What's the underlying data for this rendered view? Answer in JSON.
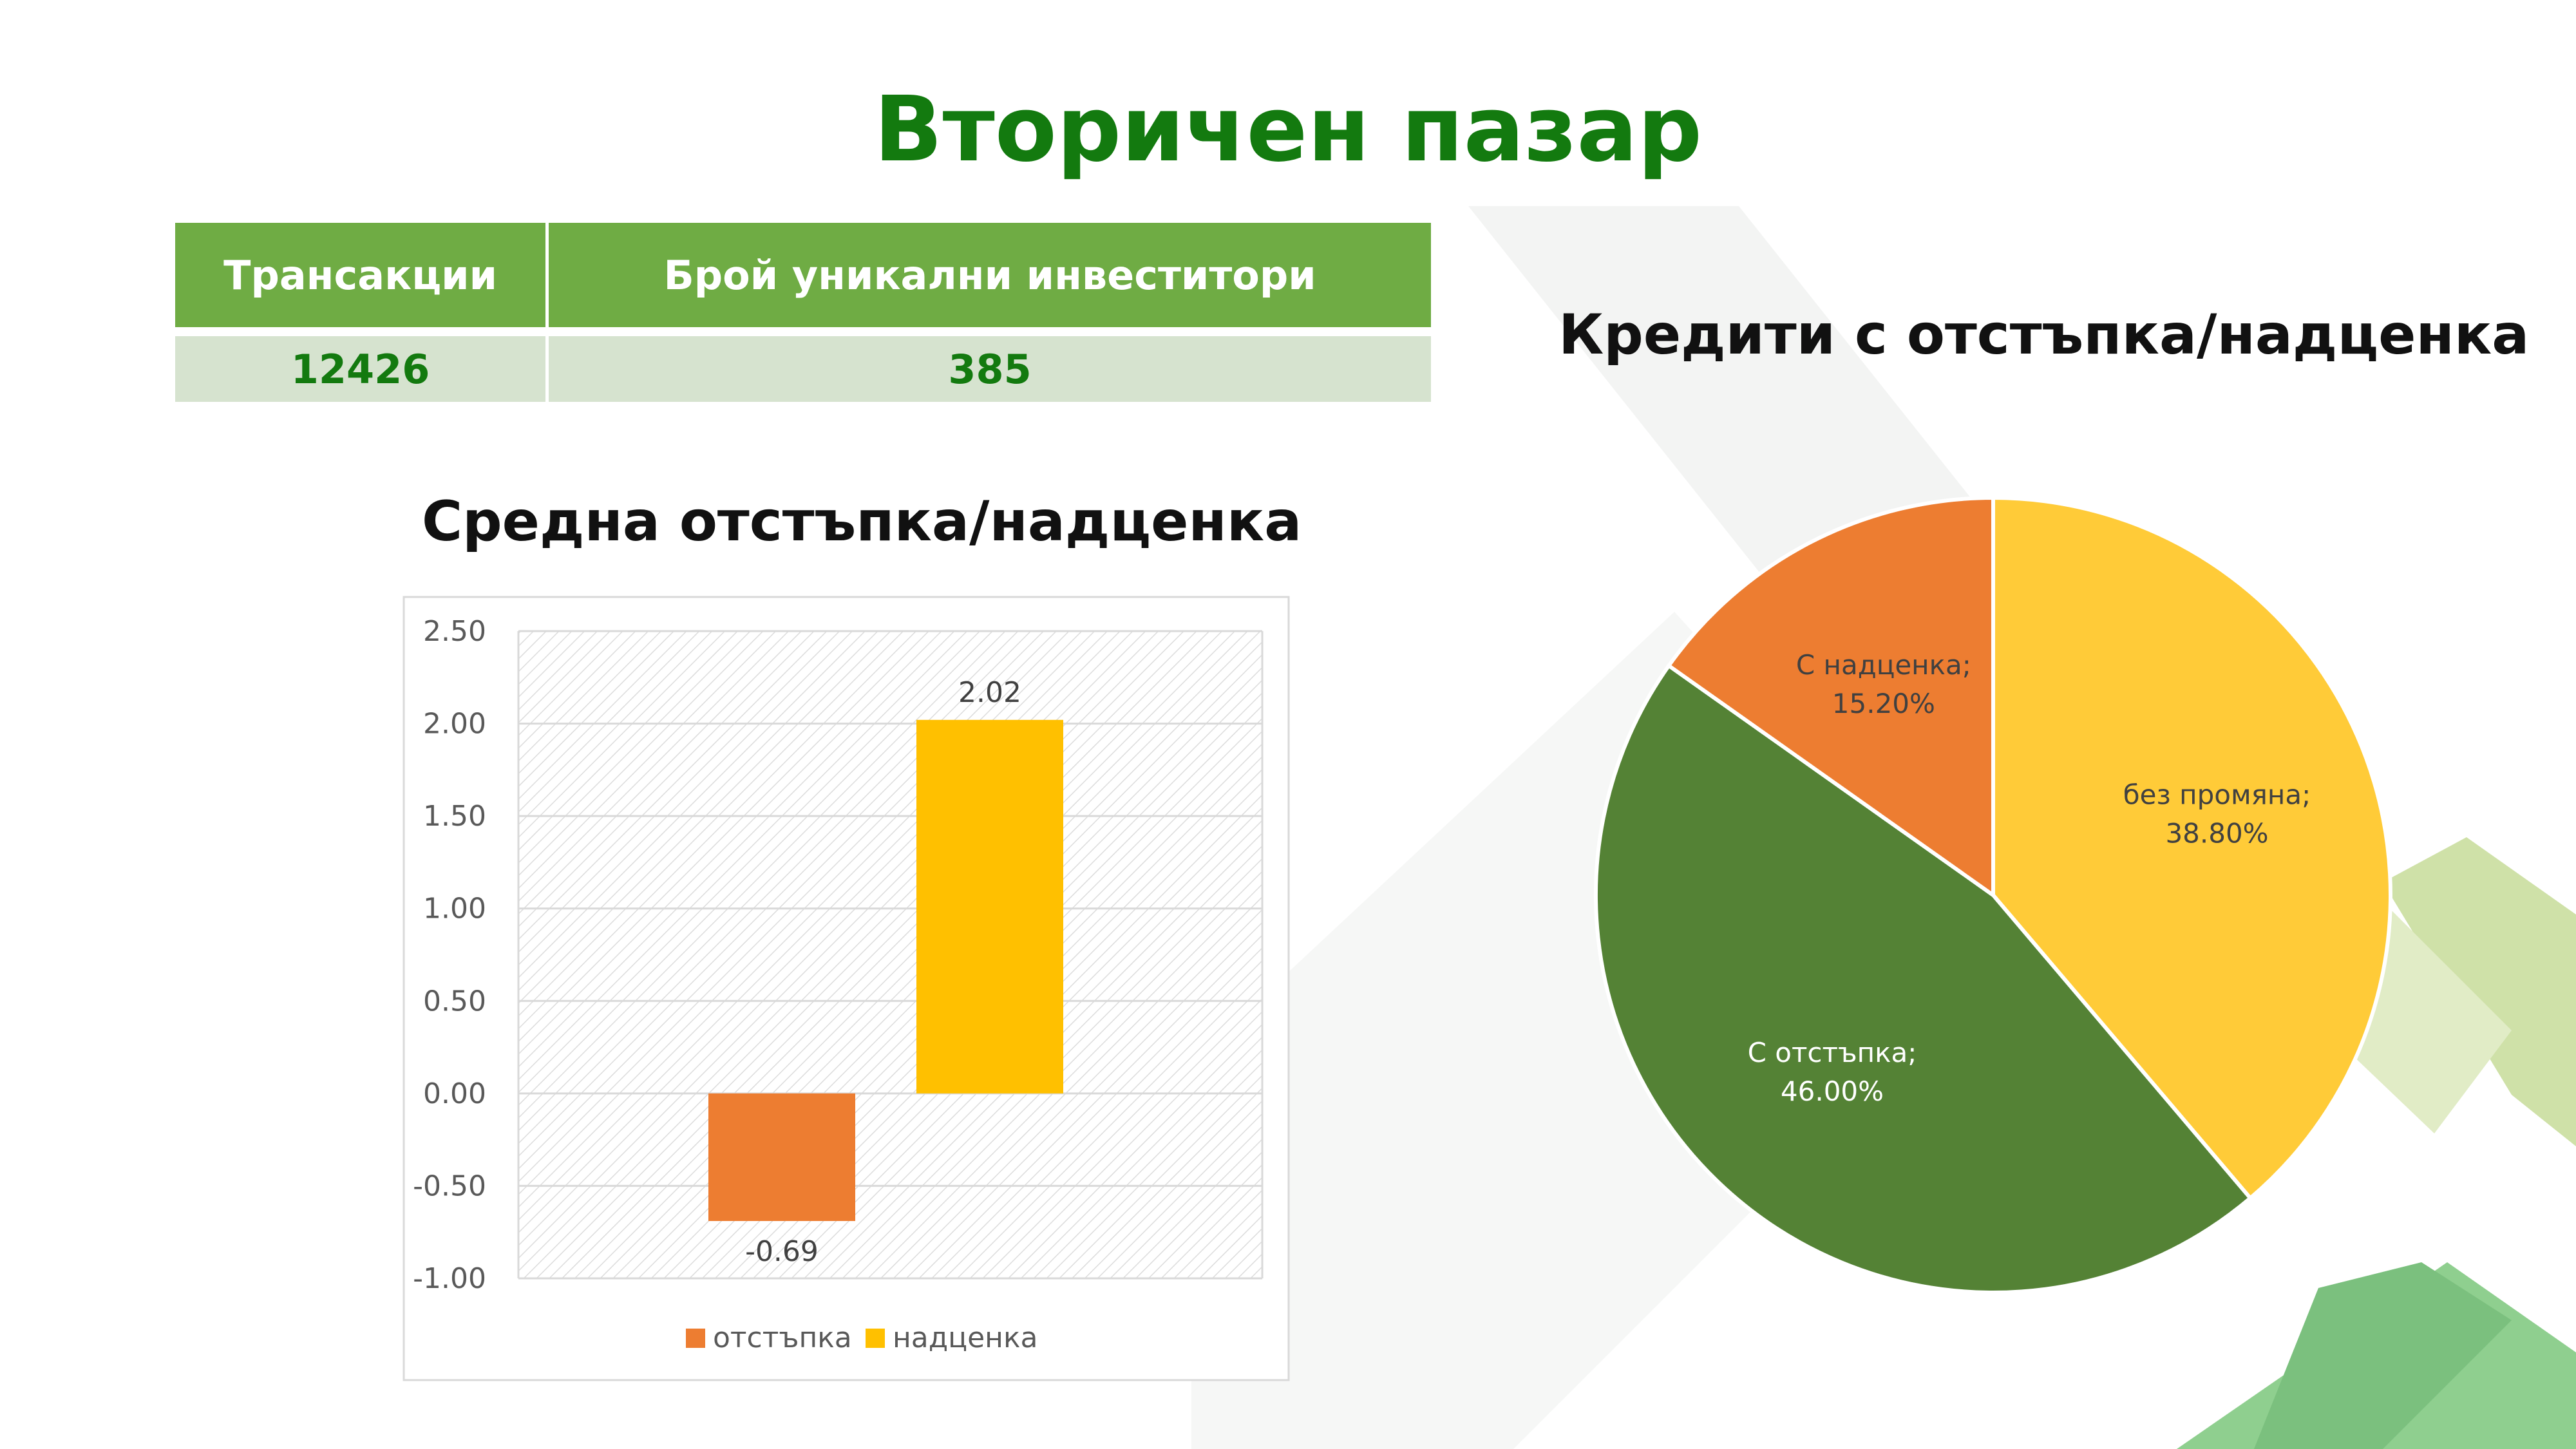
{
  "page_title": "Вторичен пазар",
  "stats_table": {
    "headers": [
      "Трансакции",
      "Брой уникални инвеститори"
    ],
    "values": [
      "12426",
      "385"
    ]
  },
  "colors": {
    "title_green": "#137a0f",
    "table_header": "#6fac44",
    "table_cell": "#d6e3cf",
    "orange": "#ed7d31",
    "yellow": "#ffc000",
    "pie_yellow": "#ffcb38",
    "pie_green": "#548235"
  },
  "chart_data": [
    {
      "type": "bar",
      "title": "Средна отстъпка/надценка",
      "xlabel": "",
      "ylabel": "",
      "ylim": [
        -1.0,
        2.5
      ],
      "yticks": [
        "2.50",
        "2.00",
        "1.50",
        "1.00",
        "0.50",
        "0.00",
        "-0.50",
        "-1.00"
      ],
      "grid": true,
      "legend_position": "bottom",
      "series": [
        {
          "name": "отстъпка",
          "values": [
            -0.69
          ],
          "labels": [
            "-0.69"
          ],
          "color": "#ed7d31"
        },
        {
          "name": "надценка",
          "values": [
            2.02
          ],
          "labels": [
            "2.02"
          ],
          "color": "#ffc000"
        }
      ]
    },
    {
      "type": "pie",
      "title": "Кредити с отстъпка/надценка",
      "slices": [
        {
          "name": "без промяна",
          "value": 38.8,
          "label": [
            "без промяна;",
            "38.80%"
          ],
          "color": "#ffcb38"
        },
        {
          "name": "С отстъпка",
          "value": 46.0,
          "label": [
            "С отстъпка;",
            "46.00%"
          ],
          "color": "#548235"
        },
        {
          "name": "С надценка",
          "value": 15.2,
          "label": [
            "С надценка;",
            "15.20%"
          ],
          "color": "#ed7d31"
        }
      ]
    }
  ]
}
